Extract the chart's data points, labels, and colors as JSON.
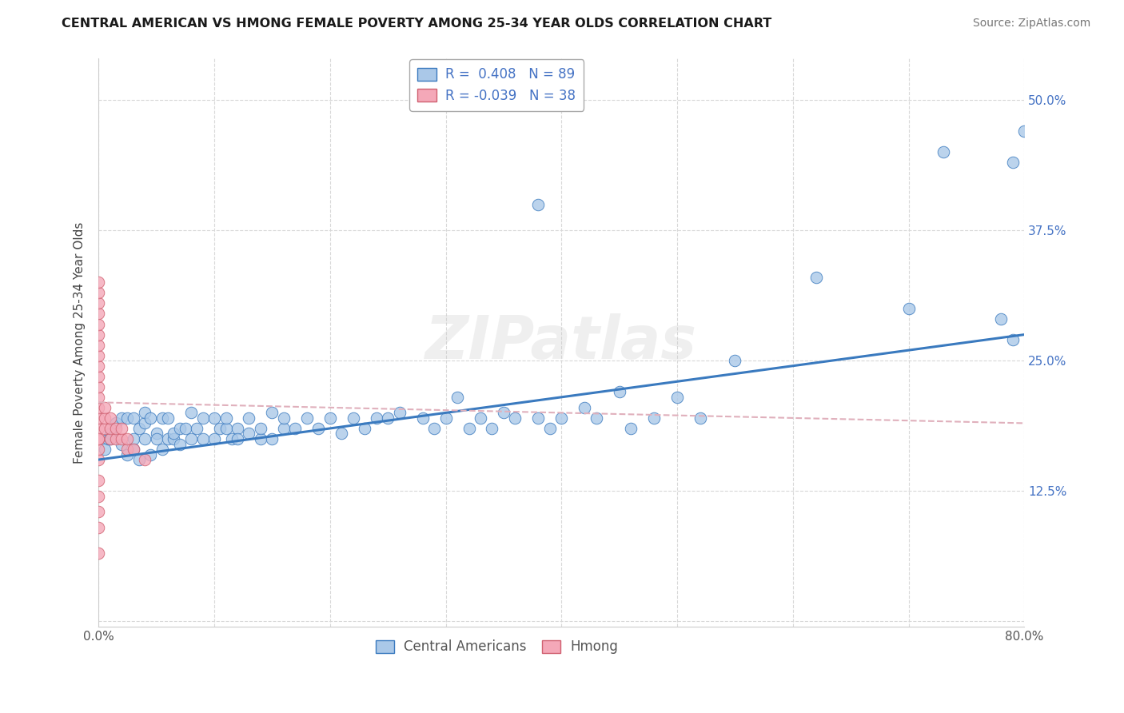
{
  "title": "CENTRAL AMERICAN VS HMONG FEMALE POVERTY AMONG 25-34 YEAR OLDS CORRELATION CHART",
  "source": "Source: ZipAtlas.com",
  "ylabel": "Female Poverty Among 25-34 Year Olds",
  "xlim": [
    0.0,
    0.8
  ],
  "ylim": [
    -0.005,
    0.54
  ],
  "xticks": [
    0.0,
    0.1,
    0.2,
    0.3,
    0.4,
    0.5,
    0.6,
    0.7,
    0.8
  ],
  "ytick_positions": [
    0.0,
    0.125,
    0.25,
    0.375,
    0.5
  ],
  "r_central": 0.408,
  "n_central": 89,
  "r_hmong": -0.039,
  "n_hmong": 38,
  "central_color": "#aac8e8",
  "hmong_color": "#f4a8b8",
  "line_central_color": "#3a7abf",
  "line_hmong_color": "#e0b0bc",
  "background_color": "#ffffff",
  "grid_color": "#d8d8d8",
  "central_x": [
    0.005,
    0.008,
    0.01,
    0.01,
    0.015,
    0.02,
    0.02,
    0.025,
    0.025,
    0.03,
    0.03,
    0.03,
    0.035,
    0.035,
    0.04,
    0.04,
    0.04,
    0.045,
    0.045,
    0.05,
    0.05,
    0.055,
    0.055,
    0.06,
    0.06,
    0.065,
    0.065,
    0.07,
    0.07,
    0.075,
    0.08,
    0.08,
    0.085,
    0.09,
    0.09,
    0.1,
    0.1,
    0.105,
    0.11,
    0.11,
    0.115,
    0.12,
    0.12,
    0.13,
    0.13,
    0.14,
    0.14,
    0.15,
    0.15,
    0.16,
    0.16,
    0.17,
    0.18,
    0.19,
    0.2,
    0.21,
    0.22,
    0.23,
    0.24,
    0.25,
    0.26,
    0.28,
    0.29,
    0.3,
    0.31,
    0.32,
    0.33,
    0.34,
    0.35,
    0.36,
    0.38,
    0.39,
    0.4,
    0.42,
    0.43,
    0.45,
    0.46,
    0.48,
    0.5,
    0.52,
    0.38,
    0.55,
    0.62,
    0.7,
    0.73,
    0.78,
    0.79,
    0.79,
    0.8
  ],
  "central_y": [
    0.165,
    0.175,
    0.18,
    0.175,
    0.19,
    0.17,
    0.195,
    0.16,
    0.195,
    0.165,
    0.175,
    0.195,
    0.155,
    0.185,
    0.175,
    0.19,
    0.2,
    0.16,
    0.195,
    0.18,
    0.175,
    0.195,
    0.165,
    0.175,
    0.195,
    0.175,
    0.18,
    0.185,
    0.17,
    0.185,
    0.175,
    0.2,
    0.185,
    0.195,
    0.175,
    0.195,
    0.175,
    0.185,
    0.185,
    0.195,
    0.175,
    0.185,
    0.175,
    0.195,
    0.18,
    0.175,
    0.185,
    0.2,
    0.175,
    0.185,
    0.195,
    0.185,
    0.195,
    0.185,
    0.195,
    0.18,
    0.195,
    0.185,
    0.195,
    0.195,
    0.2,
    0.195,
    0.185,
    0.195,
    0.215,
    0.185,
    0.195,
    0.185,
    0.2,
    0.195,
    0.195,
    0.185,
    0.195,
    0.205,
    0.195,
    0.22,
    0.185,
    0.195,
    0.215,
    0.195,
    0.4,
    0.25,
    0.33,
    0.3,
    0.45,
    0.29,
    0.44,
    0.27,
    0.47
  ],
  "hmong_x": [
    0.0,
    0.0,
    0.0,
    0.0,
    0.0,
    0.0,
    0.0,
    0.0,
    0.0,
    0.0,
    0.0,
    0.0,
    0.0,
    0.0,
    0.0,
    0.0,
    0.0,
    0.0,
    0.0,
    0.0,
    0.0,
    0.0,
    0.0,
    0.0,
    0.005,
    0.005,
    0.005,
    0.01,
    0.01,
    0.01,
    0.015,
    0.015,
    0.02,
    0.02,
    0.025,
    0.025,
    0.03,
    0.04
  ],
  "hmong_y": [
    0.065,
    0.09,
    0.105,
    0.12,
    0.135,
    0.155,
    0.165,
    0.175,
    0.185,
    0.195,
    0.205,
    0.215,
    0.225,
    0.235,
    0.245,
    0.255,
    0.265,
    0.275,
    0.285,
    0.295,
    0.305,
    0.315,
    0.325,
    0.175,
    0.185,
    0.195,
    0.205,
    0.175,
    0.185,
    0.195,
    0.175,
    0.185,
    0.175,
    0.185,
    0.165,
    0.175,
    0.165,
    0.155
  ],
  "line_central_start_y": 0.155,
  "line_central_end_y": 0.275,
  "line_hmong_start_y": 0.21,
  "line_hmong_end_y": 0.19
}
